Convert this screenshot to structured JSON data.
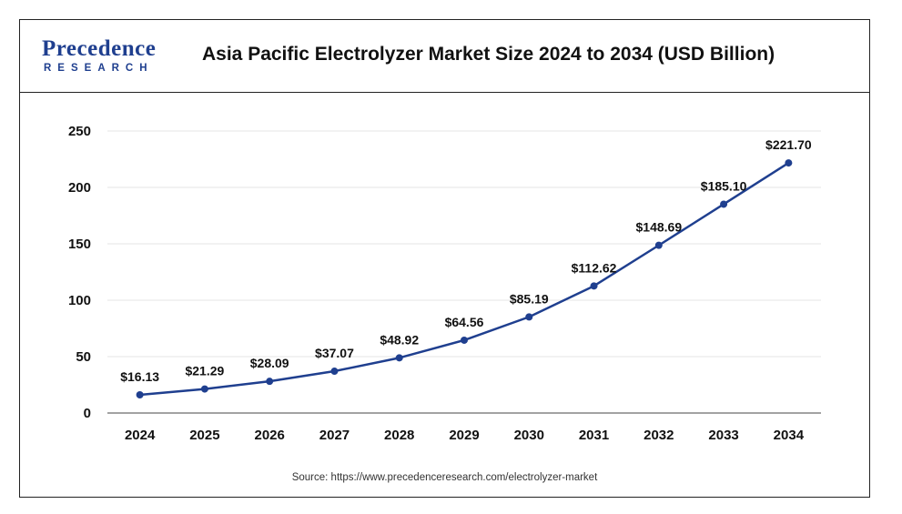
{
  "header": {
    "logo_main": "Precedence",
    "logo_sub": "RESEARCH",
    "title": "Asia Pacific Electrolyzer Market Size 2024 to 2034 (USD Billion)"
  },
  "source": "Source: https://www.precedenceresearch.com/electrolyzer-market",
  "colors": {
    "line": "#1f3f8f",
    "grid": "#e6e6e6",
    "axis": "#444444"
  },
  "chart_data": {
    "type": "line",
    "title": "Asia Pacific Electrolyzer Market Size 2024 to 2034 (USD Billion)",
    "categories": [
      "2024",
      "2025",
      "2026",
      "2027",
      "2028",
      "2029",
      "2030",
      "2031",
      "2032",
      "2033",
      "2034"
    ],
    "values": [
      16.13,
      21.29,
      28.09,
      37.07,
      48.92,
      64.56,
      85.19,
      112.62,
      148.69,
      185.1,
      221.7
    ],
    "data_labels": [
      "$16.13",
      "$21.29",
      "$28.09",
      "$37.07",
      "$48.92",
      "$64.56",
      "$85.19",
      "$112.62",
      "$148.69",
      "$185.10",
      "$221.70"
    ],
    "yticks": [
      0,
      50,
      100,
      150,
      200,
      250
    ],
    "ylim": [
      0,
      250
    ],
    "xlabel": "",
    "ylabel": "",
    "grid": true,
    "legend": "none"
  }
}
